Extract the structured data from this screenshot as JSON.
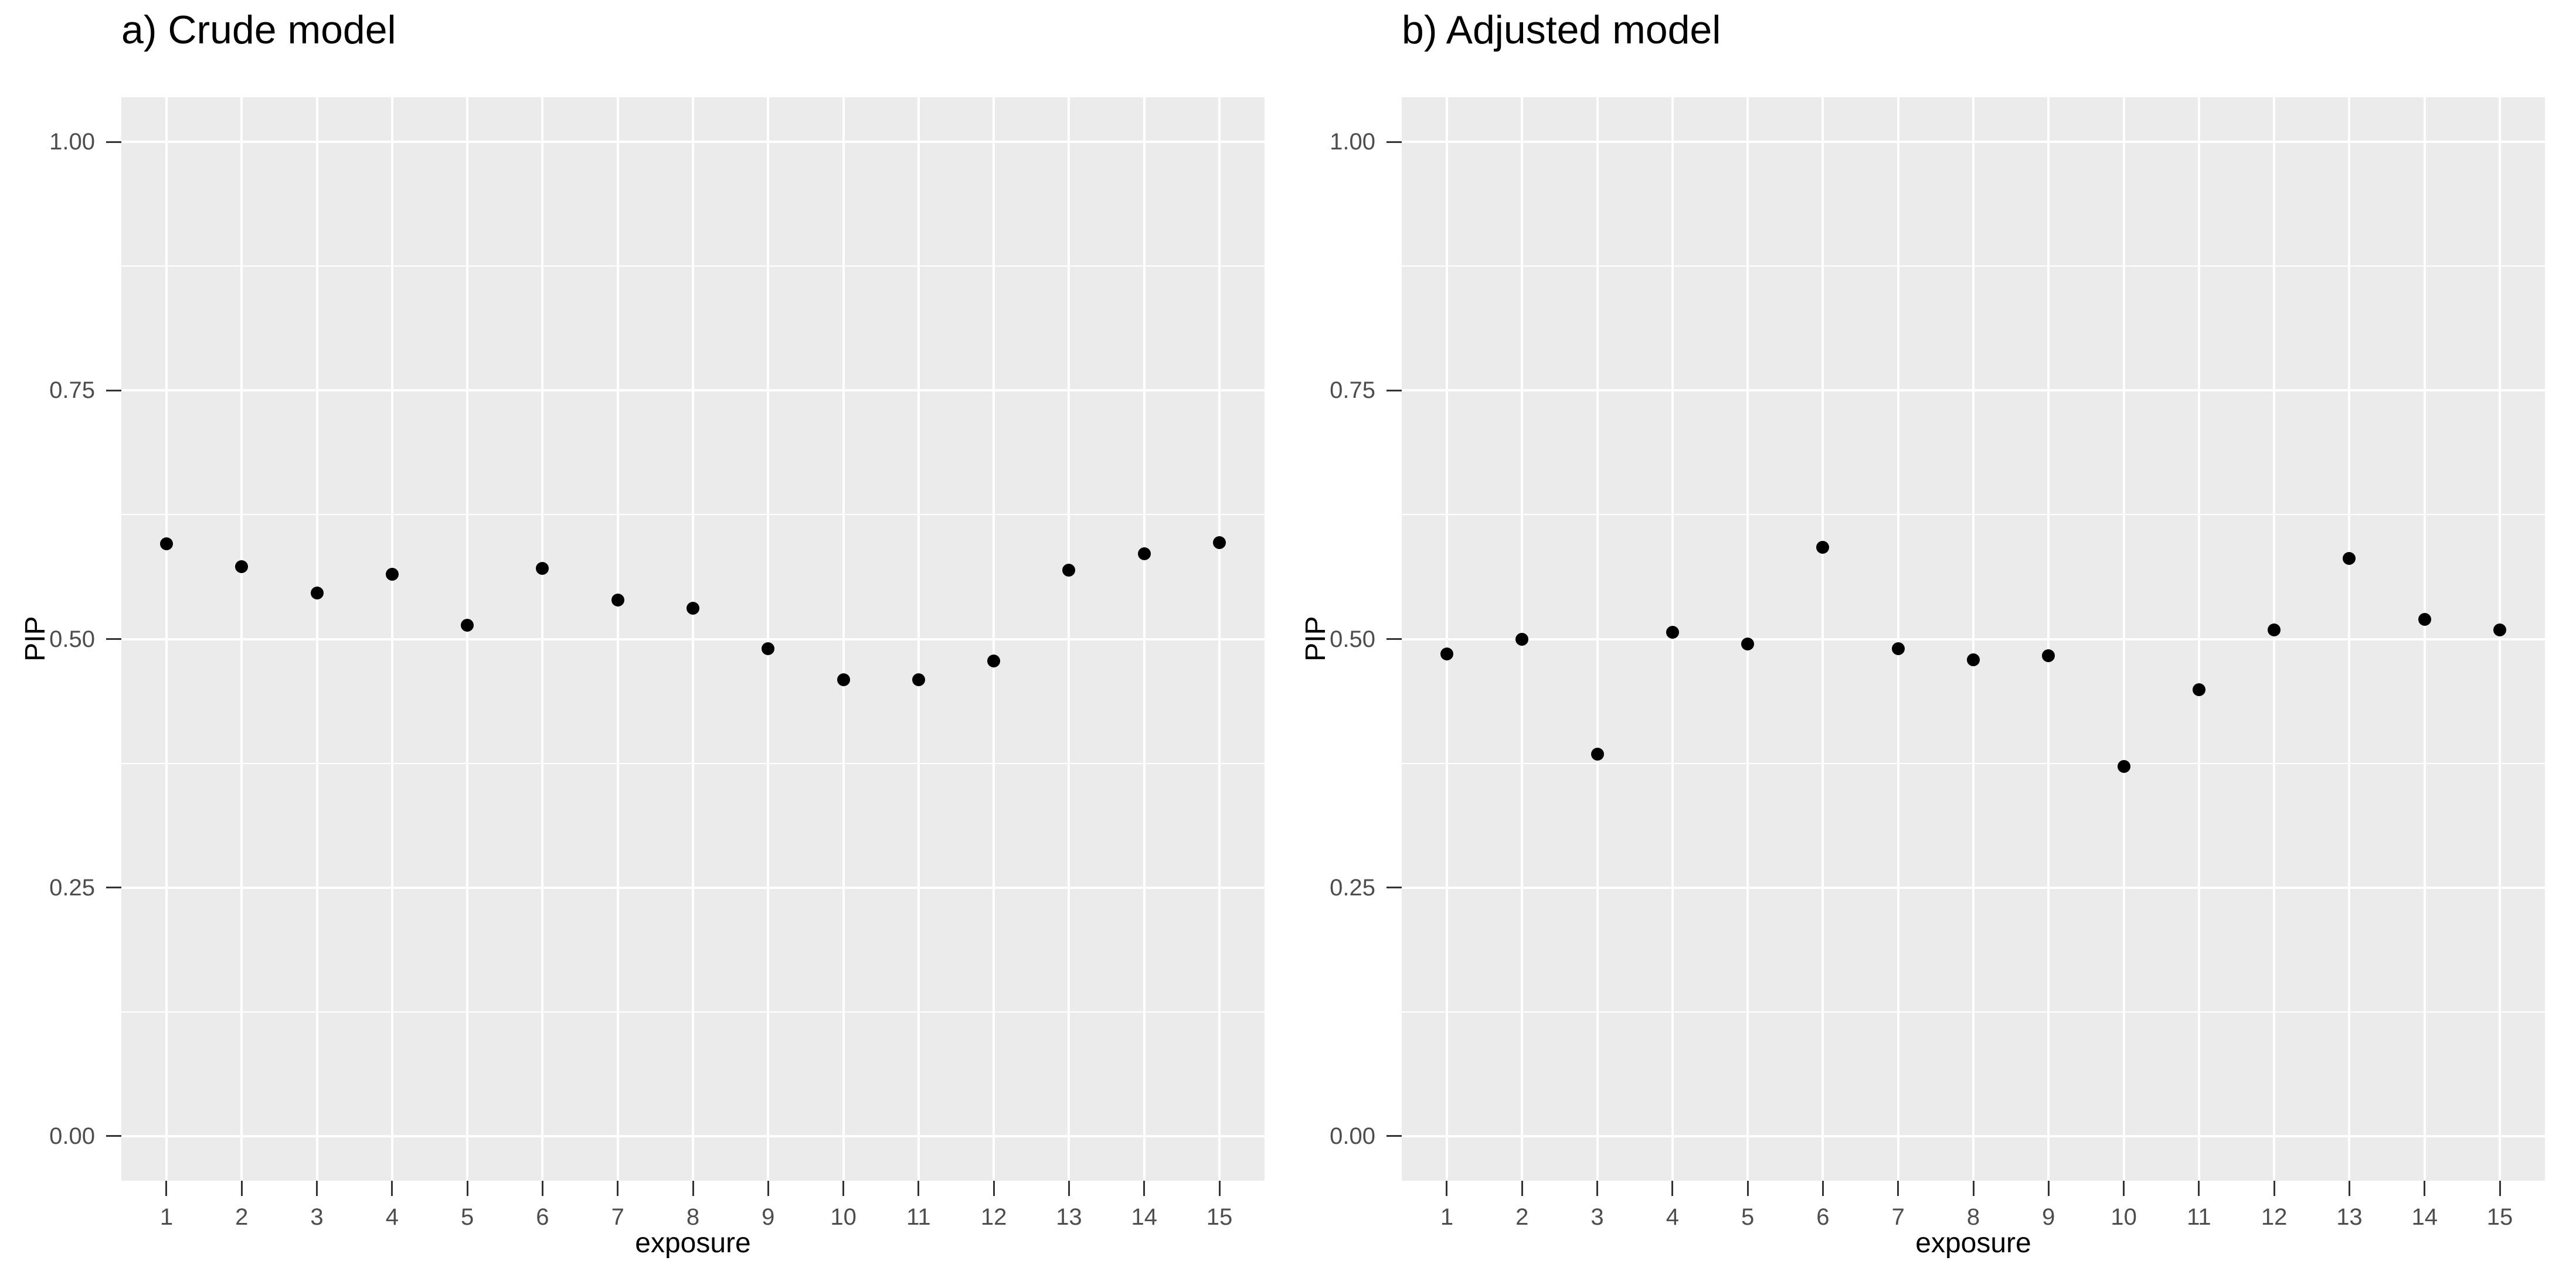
{
  "style": {
    "page_background": "#FFFFFF",
    "panel_background": "#EBEBEB",
    "gridline_color": "#FFFFFF",
    "point_color": "#000000",
    "tick_mark_color": "#333333",
    "tick_label_color": "#4D4D4D",
    "axis_title_color": "#000000",
    "title_color": "#000000"
  },
  "chart_data": [
    {
      "type": "scatter",
      "title": "a) Crude model",
      "xlabel": "exposure",
      "ylabel": "PIP",
      "x": [
        1,
        2,
        3,
        4,
        5,
        6,
        7,
        8,
        9,
        10,
        11,
        12,
        13,
        14,
        15
      ],
      "y": [
        0.596,
        0.573,
        0.546,
        0.565,
        0.514,
        0.571,
        0.539,
        0.531,
        0.49,
        0.459,
        0.459,
        0.478,
        0.569,
        0.586,
        0.597
      ],
      "xlim": [
        0.4,
        15.6
      ],
      "ylim": [
        -0.045,
        1.045
      ],
      "x_tick_values": [
        1,
        2,
        3,
        4,
        5,
        6,
        7,
        8,
        9,
        10,
        11,
        12,
        13,
        14,
        15
      ],
      "x_tick_labels": [
        "1",
        "2",
        "3",
        "4",
        "5",
        "6",
        "7",
        "8",
        "9",
        "10",
        "11",
        "12",
        "13",
        "14",
        "15"
      ],
      "y_tick_values": [
        0.0,
        0.25,
        0.5,
        0.75,
        1.0
      ],
      "y_tick_labels": [
        "0.00",
        "0.25",
        "0.50",
        "0.75",
        "1.00"
      ],
      "y_minor_gridlines": [
        0.125,
        0.375,
        0.625,
        0.875
      ],
      "grid": "major-and-minor-horizontal, major-vertical",
      "legend": "none"
    },
    {
      "type": "scatter",
      "title": "b) Adjusted model",
      "xlabel": "exposure",
      "ylabel": "PIP",
      "x": [
        1,
        2,
        3,
        4,
        5,
        6,
        7,
        8,
        9,
        10,
        11,
        12,
        13,
        14,
        15
      ],
      "y": [
        0.485,
        0.5,
        0.384,
        0.507,
        0.495,
        0.592,
        0.49,
        0.479,
        0.483,
        0.372,
        0.449,
        0.509,
        0.581,
        0.52,
        0.509
      ],
      "xlim": [
        0.4,
        15.6
      ],
      "ylim": [
        -0.045,
        1.045
      ],
      "x_tick_values": [
        1,
        2,
        3,
        4,
        5,
        6,
        7,
        8,
        9,
        10,
        11,
        12,
        13,
        14,
        15
      ],
      "x_tick_labels": [
        "1",
        "2",
        "3",
        "4",
        "5",
        "6",
        "7",
        "8",
        "9",
        "10",
        "11",
        "12",
        "13",
        "14",
        "15"
      ],
      "y_tick_values": [
        0.0,
        0.25,
        0.5,
        0.75,
        1.0
      ],
      "y_tick_labels": [
        "0.00",
        "0.25",
        "0.50",
        "0.75",
        "1.00"
      ],
      "y_minor_gridlines": [
        0.125,
        0.375,
        0.625,
        0.875
      ],
      "grid": "major-and-minor-horizontal, major-vertical",
      "legend": "none"
    }
  ]
}
